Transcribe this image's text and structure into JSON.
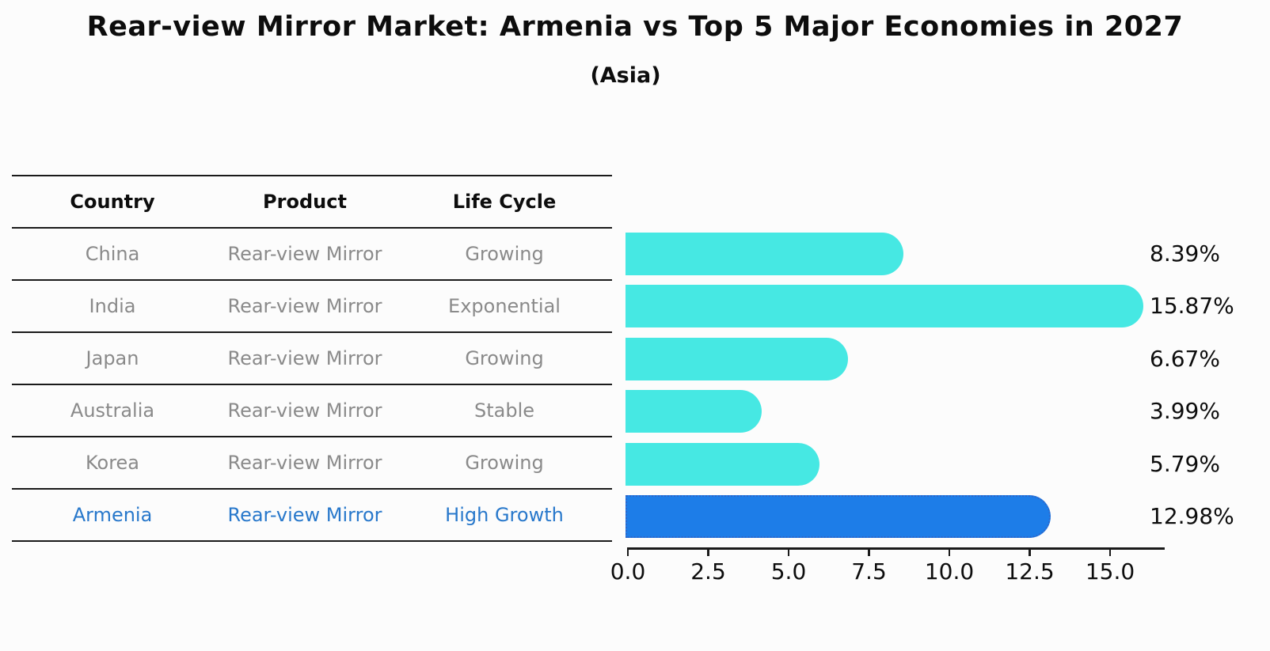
{
  "title": "Rear-view Mirror Market: Armenia vs Top 5 Major Economies in 2027",
  "subtitle": "(Asia)",
  "colors": {
    "bar": "#46e8e3",
    "highlight_bar": "#1d7de8",
    "highlight_border": "#2e66c9",
    "highlight_text": "#2878cb",
    "table_text": "#8a8a8a",
    "header_text": "#0d0d0d"
  },
  "table": {
    "headers": [
      "Country",
      "Product",
      "Life Cycle"
    ],
    "rows": [
      {
        "country": "China",
        "product": "Rear-view Mirror",
        "life_cycle": "Growing",
        "highlighted": false
      },
      {
        "country": "India",
        "product": "Rear-view Mirror",
        "life_cycle": "Exponential",
        "highlighted": false
      },
      {
        "country": "Japan",
        "product": "Rear-view Mirror",
        "life_cycle": "Growing",
        "highlighted": false
      },
      {
        "country": "Australia",
        "product": "Rear-view Mirror",
        "life_cycle": "Stable",
        "highlighted": false
      },
      {
        "country": "Korea",
        "product": "Rear-view Mirror",
        "life_cycle": "Growing",
        "highlighted": false
      },
      {
        "country": "Armenia",
        "product": "Rear-view Mirror",
        "life_cycle": "High Growth",
        "highlighted": true
      }
    ]
  },
  "chart_data": {
    "type": "bar",
    "orientation": "horizontal",
    "title": "Rear-view Mirror Market: Armenia vs Top 5 Major Economies in 2027",
    "subtitle": "(Asia)",
    "categories": [
      "China",
      "India",
      "Japan",
      "Australia",
      "Korea",
      "Armenia"
    ],
    "values": [
      8.39,
      15.87,
      6.67,
      3.99,
      5.79,
      12.98
    ],
    "value_labels": [
      "8.39%",
      "15.87%",
      "6.67%",
      "3.99%",
      "5.79%",
      "12.98%"
    ],
    "highlight_index": 5,
    "xlabel": "",
    "ylabel": "",
    "xlim": [
      0,
      16.7
    ],
    "xticks": [
      0.0,
      2.5,
      5.0,
      7.5,
      10.0,
      12.5,
      15.0
    ],
    "xtick_labels": [
      "0.0",
      "2.5",
      "5.0",
      "7.5",
      "10.0",
      "12.5",
      "15.0"
    ],
    "grid": false,
    "legend": false
  }
}
